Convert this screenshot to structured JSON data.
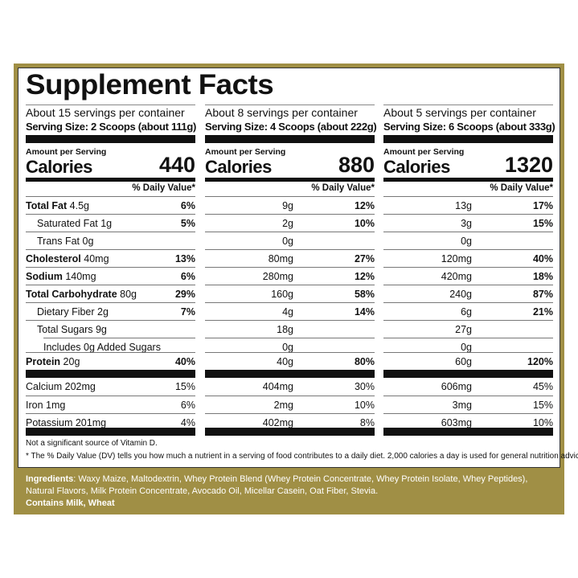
{
  "title": "Supplement Facts",
  "amount_per_serving": "Amount per Serving",
  "calories_label": "Calories",
  "dv_header": "% Daily Value*",
  "columns": [
    {
      "servings": "About 15 servings per container",
      "serving_size": "Serving Size:  2 Scoops (about 111g)",
      "calories": "440",
      "rows": [
        [
          "4.5g",
          "6%"
        ],
        [
          "1g",
          "5%"
        ],
        [
          "0g",
          ""
        ],
        [
          "40mg",
          "13%"
        ],
        [
          "140mg",
          "6%"
        ],
        [
          "80g",
          "29%"
        ],
        [
          "2g",
          "7%"
        ],
        [
          "9g",
          ""
        ],
        [
          "0g",
          ""
        ],
        [
          "20g",
          "40%"
        ],
        [
          "202mg",
          "15%"
        ],
        [
          "1mg",
          "6%"
        ],
        [
          "201mg",
          "4%"
        ]
      ]
    },
    {
      "servings": "About 8 servings per container",
      "serving_size": "Serving Size: 4 Scoops (about 222g)",
      "calories": "880",
      "rows": [
        [
          "9g",
          "12%"
        ],
        [
          "2g",
          "10%"
        ],
        [
          "0g",
          ""
        ],
        [
          "80mg",
          "27%"
        ],
        [
          "280mg",
          "12%"
        ],
        [
          "160g",
          "58%"
        ],
        [
          "4g",
          "14%"
        ],
        [
          "18g",
          ""
        ],
        [
          "0g",
          ""
        ],
        [
          "40g",
          "80%"
        ],
        [
          "404mg",
          "30%"
        ],
        [
          "2mg",
          "10%"
        ],
        [
          "402mg",
          "8%"
        ]
      ]
    },
    {
      "servings": "About 5 servings per container",
      "serving_size": "Serving Size: 6 Scoops (about 333g)",
      "calories": "1320",
      "rows": [
        [
          "13g",
          "17%"
        ],
        [
          "3g",
          "15%"
        ],
        [
          "0g",
          ""
        ],
        [
          "120mg",
          "40%"
        ],
        [
          "420mg",
          "18%"
        ],
        [
          "240g",
          "87%"
        ],
        [
          "6g",
          "21%"
        ],
        [
          "27g",
          ""
        ],
        [
          "0g",
          ""
        ],
        [
          "60g",
          "120%"
        ],
        [
          "606mg",
          "45%"
        ],
        [
          "3mg",
          "15%"
        ],
        [
          "603mg",
          "10%"
        ]
      ]
    }
  ],
  "nutrients": [
    {
      "label": "Total Fat",
      "bold": true,
      "indent": 0
    },
    {
      "label": "Saturated Fat",
      "bold": false,
      "indent": 1
    },
    {
      "label": "Trans Fat",
      "bold": false,
      "indent": 1
    },
    {
      "label": "Cholesterol",
      "bold": true,
      "indent": 0
    },
    {
      "label": "Sodium",
      "bold": true,
      "indent": 0
    },
    {
      "label": "Total Carbohydrate",
      "bold": true,
      "indent": 0
    },
    {
      "label": "Dietary Fiber",
      "bold": false,
      "indent": 1
    },
    {
      "label": "Total Sugars",
      "bold": false,
      "indent": 1
    },
    {
      "label": "Includes 0g Added Sugars",
      "bold": false,
      "indent": 2,
      "noamount": true
    },
    {
      "label": "Protein",
      "bold": true,
      "indent": 0
    },
    {
      "label": "Calcium",
      "bold": false,
      "indent": 0
    },
    {
      "label": "Iron",
      "bold": false,
      "indent": 0
    },
    {
      "label": "Potassium",
      "bold": false,
      "indent": 0
    }
  ],
  "notes": {
    "vitamin_d": "Not a significant source of Vitamin D.",
    "dv_footnote": "*   The % Daily Value (DV) tells you how much a nutrient in a serving of food contributes to a daily diet. 2,000 calories a day is used for general nutrition advice."
  },
  "ingredients": {
    "label": "Ingredients",
    "text": ": Waxy Maize, Maltodextrin, Whey Protein Blend (Whey Protein Concentrate, Whey Protein Isolate, Whey Peptides), Natural Flavors, Milk Protein Concentrate, Avocado Oil, Micellar Casein, Oat Fiber, Stevia.",
    "allergens": "Contains Milk, Wheat"
  },
  "colors": {
    "gold": "#a08f45"
  }
}
